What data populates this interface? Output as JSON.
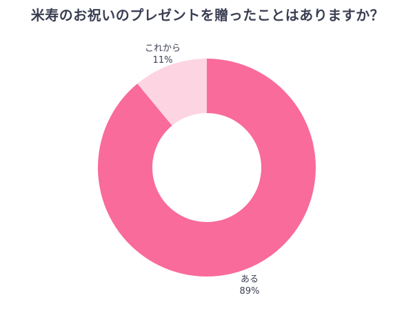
{
  "chart_data": {
    "type": "pie",
    "donut": true,
    "title": "米寿のお祝いのプレゼントを贈ったことはありますか？",
    "slices": [
      {
        "label": "ある",
        "value": 89,
        "value_label": "89%",
        "color": "#f96b9a"
      },
      {
        "label": "これから",
        "value": 11,
        "value_label": "11%",
        "color": "#fdd5e2"
      }
    ],
    "legend": "none",
    "background": "#ffffff"
  }
}
